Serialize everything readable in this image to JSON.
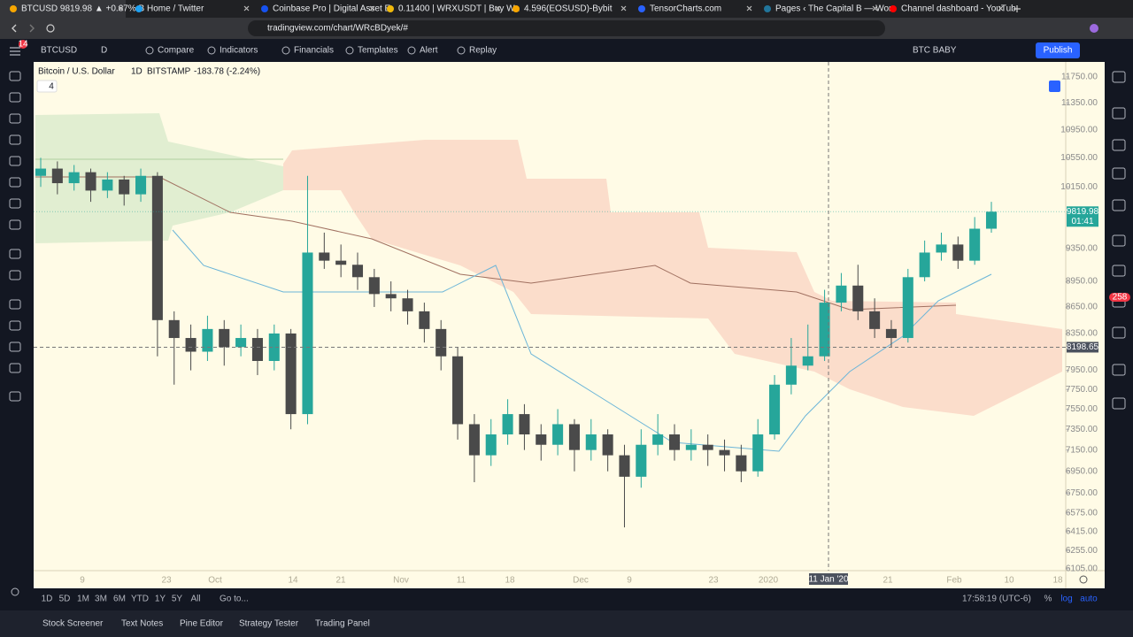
{
  "browser": {
    "tabs": [
      "BTCUSD 9819.98 ▲ +0.67% B",
      "Home / Twitter",
      "Coinbase Pro | Digital Asset E",
      "0.11400 | WRXUSDT | Buy Wa",
      "4.596(EOSUSD)-Bybit",
      "TensorCharts.com",
      "Pages ‹ The Capital B — Wor",
      "Channel dashboard - YouTub"
    ],
    "url": "tradingview.com/chart/WRcBDyek/#",
    "badge": "14"
  },
  "toolbar": {
    "symbol": "BTCUSD",
    "interval": "D",
    "items": [
      "Compare",
      "Indicators",
      "Financials",
      "Templates",
      "Alert",
      "Replay"
    ],
    "layout_name": "BTC BABY",
    "publish": "Publish"
  },
  "chart": {
    "legend": {
      "title": "Bitcoin / U.S. Dollar",
      "interval": "1D",
      "exchange": "BITSTAMP",
      "change": "-183.78 (-2.24%)",
      "indicators_count": "4"
    },
    "log_scale": true,
    "ylim": [
      6089,
      11987
    ],
    "up_color": "#26a69a",
    "down_color": "#4a4a4a",
    "candles": [
      [
        10300,
        10550,
        10150,
        10400
      ],
      [
        10400,
        10500,
        10050,
        10200
      ],
      [
        10200,
        10450,
        10100,
        10350
      ],
      [
        10350,
        10400,
        9950,
        10100
      ],
      [
        10100,
        10350,
        10000,
        10250
      ],
      [
        10250,
        10300,
        9900,
        10050
      ],
      [
        10050,
        10400,
        9950,
        10300
      ],
      [
        10300,
        10350,
        8100,
        8500
      ],
      [
        8500,
        8600,
        7800,
        8300
      ],
      [
        8300,
        8450,
        7950,
        8150
      ],
      [
        8150,
        8550,
        8050,
        8400
      ],
      [
        8400,
        8500,
        8000,
        8200
      ],
      [
        8200,
        8450,
        8100,
        8300
      ],
      [
        8300,
        8400,
        7900,
        8050
      ],
      [
        8050,
        8450,
        7950,
        8350
      ],
      [
        8350,
        8400,
        7350,
        7500
      ],
      [
        7500,
        10300,
        7400,
        9300
      ],
      [
        9300,
        9550,
        9100,
        9200
      ],
      [
        9200,
        9400,
        9000,
        9150
      ],
      [
        9150,
        9300,
        8850,
        9000
      ],
      [
        9000,
        9100,
        8650,
        8800
      ],
      [
        8800,
        8950,
        8600,
        8750
      ],
      [
        8750,
        8850,
        8450,
        8600
      ],
      [
        8600,
        8700,
        8250,
        8400
      ],
      [
        8400,
        8500,
        7950,
        8100
      ],
      [
        8100,
        8200,
        7250,
        7400
      ],
      [
        7400,
        7500,
        6850,
        7100
      ],
      [
        7100,
        7450,
        7000,
        7300
      ],
      [
        7300,
        7650,
        7200,
        7500
      ],
      [
        7500,
        7600,
        7150,
        7300
      ],
      [
        7300,
        7400,
        7050,
        7200
      ],
      [
        7200,
        7550,
        7100,
        7400
      ],
      [
        7400,
        7450,
        6950,
        7150
      ],
      [
        7150,
        7450,
        7050,
        7300
      ],
      [
        7300,
        7350,
        6950,
        7100
      ],
      [
        7100,
        7200,
        6450,
        6900
      ],
      [
        6900,
        7350,
        6800,
        7200
      ],
      [
        7200,
        7500,
        7100,
        7300
      ],
      [
        7300,
        7400,
        7050,
        7150
      ],
      [
        7150,
        7350,
        7050,
        7200
      ],
      [
        7200,
        7300,
        7000,
        7150
      ],
      [
        7150,
        7250,
        6950,
        7100
      ],
      [
        7100,
        7200,
        6850,
        6950
      ],
      [
        6950,
        7450,
        6900,
        7300
      ],
      [
        7300,
        7900,
        7250,
        7800
      ],
      [
        7800,
        8300,
        7700,
        8000
      ],
      [
        8000,
        8450,
        7950,
        8100
      ],
      [
        8100,
        8850,
        8050,
        8700
      ],
      [
        8700,
        9050,
        8600,
        8900
      ],
      [
        8900,
        9150,
        8500,
        8600
      ],
      [
        8600,
        8750,
        8300,
        8400
      ],
      [
        8400,
        8500,
        8200,
        8300
      ],
      [
        8300,
        9100,
        8250,
        9000
      ],
      [
        9000,
        9450,
        8950,
        9300
      ],
      [
        9300,
        9550,
        9200,
        9400
      ],
      [
        9400,
        9500,
        9100,
        9200
      ],
      [
        9200,
        9750,
        9150,
        9600
      ],
      [
        9600,
        9950,
        9550,
        9819.98
      ]
    ],
    "price_ticks": [
      {
        "value": 11750,
        "label": "11750.00"
      },
      {
        "value": 11350,
        "label": "11350.00"
      },
      {
        "value": 10950,
        "label": "10950.00"
      },
      {
        "value": 10550,
        "label": "10550.00"
      },
      {
        "value": 10150,
        "label": "10150.00"
      },
      {
        "value": 9350,
        "label": "9350.00"
      },
      {
        "value": 8950,
        "label": "8950.00"
      },
      {
        "value": 8650,
        "label": "8650.00"
      },
      {
        "value": 8350,
        "label": "8350.00"
      },
      {
        "value": 7950,
        "label": "7950.00"
      },
      {
        "value": 7750,
        "label": "7750.00"
      },
      {
        "value": 7550,
        "label": "7550.00"
      },
      {
        "value": 7350,
        "label": "7350.00"
      },
      {
        "value": 7150,
        "label": "7150.00"
      },
      {
        "value": 6950,
        "label": "6950.00"
      },
      {
        "value": 6750,
        "label": "6750.00"
      },
      {
        "value": 6575,
        "label": "6575.00"
      },
      {
        "value": 6415,
        "label": "6415.00"
      },
      {
        "value": 6255,
        "label": "6255.00"
      },
      {
        "value": 6105,
        "label": "6105.00"
      }
    ],
    "last_price": 9819.98,
    "countdown": "01:41",
    "crosshair_price": 8198.65,
    "crosshair_date": "11 Jan '20",
    "date_labels": [
      "9",
      "23",
      "Oct",
      "14",
      "21",
      "Nov",
      "11",
      "18",
      "Dec",
      "9",
      "23",
      "2020",
      "21",
      "Feb",
      "10",
      "18"
    ],
    "alert_badge": "258"
  },
  "bottom_bar": {
    "ranges": [
      "1D",
      "5D",
      "1M",
      "3M",
      "6M",
      "YTD",
      "1Y",
      "5Y",
      "All"
    ],
    "goto": "Go to...",
    "clock": "17:58:19 (UTC-6)",
    "options": [
      "%",
      "log",
      "auto"
    ]
  },
  "panels": [
    "Stock Screener",
    "Text Notes",
    "Pine Editor",
    "Strategy Tester",
    "Trading Panel"
  ]
}
